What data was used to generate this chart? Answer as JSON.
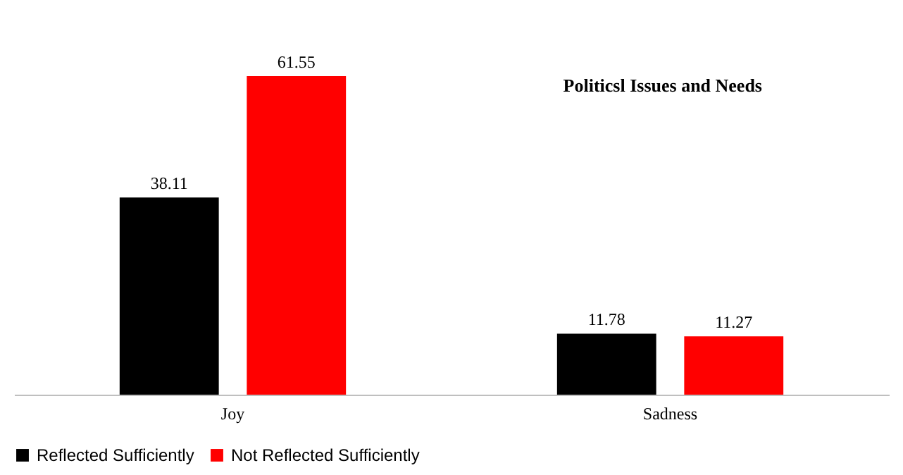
{
  "chart_data": {
    "type": "bar",
    "title": "Politicsl Issues and Needs",
    "categories": [
      "Joy",
      "Sadness"
    ],
    "series": [
      {
        "name": "Reflected Sufficiently",
        "color": "#000000",
        "values": [
          38.11,
          11.78
        ]
      },
      {
        "name": "Not Reflected Sufficiently",
        "color": "#ff0000",
        "values": [
          61.55,
          11.27
        ]
      }
    ],
    "data_labels": true,
    "grid": false,
    "legend": "bottom"
  }
}
